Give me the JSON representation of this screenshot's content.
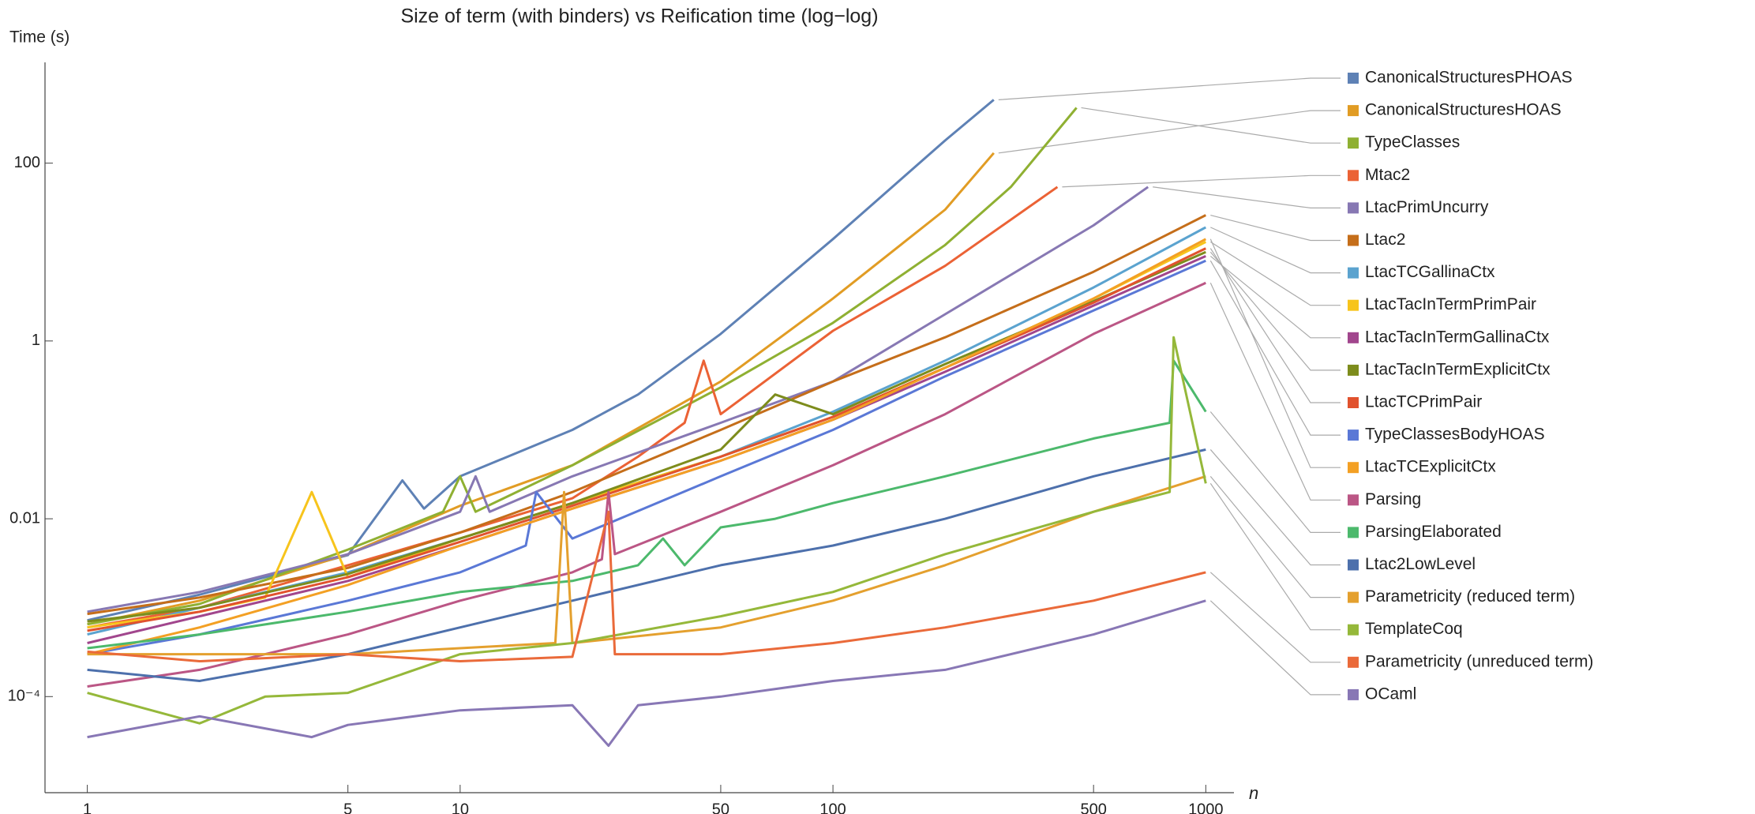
{
  "chart_data": {
    "type": "line",
    "title": "Size of term (with binders) vs Reification time (log−log)",
    "y_label": "Time (s)",
    "x_label": "n",
    "xscale": "log",
    "yscale": "log",
    "xlim": [
      0.77,
      1190
    ],
    "ylim": [
      8.3e-06,
      1360
    ],
    "xticks": [
      1,
      5,
      10,
      50,
      100,
      500,
      1000
    ],
    "yticks": [
      100,
      1,
      0.01,
      {
        "value": 0.0001,
        "label": "10⁻⁴"
      }
    ],
    "legend": "right",
    "series": [
      {
        "name": "CanonicalStructuresPHOAS",
        "color": "#5e81b5",
        "x": [
          1,
          2,
          3,
          5,
          7,
          8,
          10,
          20,
          30,
          50,
          100,
          200,
          270
        ],
        "values": [
          0.00072,
          0.0014,
          0.0022,
          0.0039,
          0.027,
          0.013,
          0.03,
          0.1,
          0.25,
          1.2,
          14,
          180,
          516
        ]
      },
      {
        "name": "CanonicalStructuresHOAS",
        "color": "#e19c24",
        "x": [
          1,
          2,
          5,
          10,
          20,
          50,
          100,
          200,
          270
        ],
        "values": [
          0.00065,
          0.0012,
          0.004,
          0.014,
          0.04,
          0.35,
          3,
          30,
          130
        ]
      },
      {
        "name": "TypeClasses",
        "color": "#8fb032",
        "x": [
          1,
          2,
          5,
          9,
          10,
          11,
          20,
          50,
          100,
          200,
          300,
          450
        ],
        "values": [
          0.00065,
          0.0011,
          0.0045,
          0.012,
          0.03,
          0.012,
          0.04,
          0.3,
          1.6,
          12,
          54,
          420
        ]
      },
      {
        "name": "Mtac2",
        "color": "#eb6235",
        "x": [
          1,
          2,
          5,
          10,
          20,
          30,
          40,
          45,
          50,
          100,
          200,
          400
        ],
        "values": [
          0.0006,
          0.001,
          0.003,
          0.007,
          0.017,
          0.05,
          0.12,
          0.6,
          0.15,
          1.3,
          7,
          54
        ]
      },
      {
        "name": "LtacPrimUncurry",
        "color": "#8778b3",
        "x": [
          1,
          2,
          5,
          10,
          11,
          12,
          20,
          50,
          100,
          200,
          500,
          700
        ],
        "values": [
          0.0009,
          0.0015,
          0.004,
          0.012,
          0.03,
          0.012,
          0.03,
          0.12,
          0.35,
          2,
          20,
          54
        ]
      },
      {
        "name": "Ltac2",
        "color": "#c56e1a",
        "x": [
          1,
          2,
          5,
          10,
          20,
          50,
          100,
          200,
          500,
          1000
        ],
        "values": [
          0.00085,
          0.0013,
          0.0028,
          0.007,
          0.02,
          0.1,
          0.35,
          1.1,
          6,
          26
        ]
      },
      {
        "name": "LtacTCGallinaCtx",
        "color": "#5ba3cf",
        "x": [
          1,
          2,
          5,
          10,
          20,
          50,
          100,
          200,
          500,
          1000
        ],
        "values": [
          0.0005,
          0.001,
          0.0025,
          0.006,
          0.015,
          0.05,
          0.16,
          0.6,
          4,
          19
        ]
      },
      {
        "name": "LtacTacInTermPrimPair",
        "color": "#f7c41c",
        "x": [
          1,
          2,
          3,
          4,
          5,
          10,
          20,
          50,
          100,
          200,
          500,
          1000
        ],
        "values": [
          0.0006,
          0.0009,
          0.0013,
          0.02,
          0.0022,
          0.006,
          0.015,
          0.05,
          0.14,
          0.5,
          3,
          13
        ]
      },
      {
        "name": "LtacTacInTermGallinaCtx",
        "color": "#a1468d",
        "x": [
          1,
          2,
          5,
          10,
          20,
          50,
          100,
          200,
          500,
          1000
        ],
        "values": [
          0.0004,
          0.0008,
          0.002,
          0.005,
          0.013,
          0.045,
          0.13,
          0.45,
          2.5,
          9
        ]
      },
      {
        "name": "LtacTacInTermExplicitCtx",
        "color": "#7d8c1c",
        "x": [
          1,
          2,
          5,
          10,
          20,
          50,
          70,
          100,
          200,
          500,
          1000
        ],
        "values": [
          0.0007,
          0.001,
          0.0024,
          0.006,
          0.015,
          0.06,
          0.25,
          0.15,
          0.55,
          2.8,
          10
        ]
      },
      {
        "name": "LtacTCPrimPair",
        "color": "#e1522e",
        "x": [
          1,
          2,
          5,
          10,
          20,
          50,
          100,
          200,
          500,
          1000
        ],
        "values": [
          0.00055,
          0.0009,
          0.0022,
          0.0055,
          0.014,
          0.05,
          0.14,
          0.5,
          2.7,
          11
        ]
      },
      {
        "name": "TypeClassesBodyHOAS",
        "color": "#5a78d6",
        "x": [
          1,
          2,
          5,
          10,
          15,
          16,
          20,
          50,
          100,
          200,
          500,
          1000
        ],
        "values": [
          0.0003,
          0.0005,
          0.0012,
          0.0025,
          0.005,
          0.02,
          0.006,
          0.03,
          0.1,
          0.4,
          2.2,
          8
        ]
      },
      {
        "name": "LtacTCExplicitCtx",
        "color": "#f3a024",
        "x": [
          1,
          2,
          5,
          10,
          20,
          50,
          100,
          200,
          500,
          1000
        ],
        "values": [
          0.0003,
          0.0006,
          0.0018,
          0.005,
          0.013,
          0.045,
          0.13,
          0.5,
          3,
          14
        ]
      },
      {
        "name": "Parsing",
        "color": "#bb5685",
        "x": [
          1,
          2,
          5,
          10,
          20,
          24,
          25,
          26,
          50,
          100,
          200,
          500,
          1000
        ],
        "values": [
          0.00013,
          0.0002,
          0.0005,
          0.0012,
          0.0025,
          0.0035,
          0.02,
          0.004,
          0.012,
          0.04,
          0.15,
          1.2,
          4.5
        ]
      },
      {
        "name": "ParsingElaborated",
        "color": "#4cb96c",
        "x": [
          1,
          2,
          5,
          10,
          20,
          30,
          35,
          40,
          50,
          70,
          100,
          200,
          500,
          800,
          820,
          1000
        ],
        "values": [
          0.00035,
          0.0005,
          0.0009,
          0.0015,
          0.002,
          0.003,
          0.006,
          0.003,
          0.008,
          0.01,
          0.015,
          0.03,
          0.08,
          0.12,
          0.6,
          0.16
        ]
      },
      {
        "name": "Ltac2LowLevel",
        "color": "#4d70ac",
        "x": [
          1,
          2,
          5,
          10,
          20,
          50,
          100,
          200,
          500,
          1000
        ],
        "values": [
          0.0002,
          0.00015,
          0.0003,
          0.0006,
          0.0012,
          0.003,
          0.005,
          0.01,
          0.03,
          0.06
        ]
      },
      {
        "name": "Parametricity (reduced term)",
        "color": "#e4a02e",
        "x": [
          1,
          2,
          5,
          10,
          18,
          19,
          20,
          50,
          100,
          200,
          500,
          1000
        ],
        "values": [
          0.0003,
          0.0003,
          0.0003,
          0.00035,
          0.0004,
          0.02,
          0.0004,
          0.0006,
          0.0012,
          0.003,
          0.012,
          0.03
        ]
      },
      {
        "name": "TemplateCoq",
        "color": "#95b83a",
        "x": [
          1,
          2,
          3,
          5,
          10,
          20,
          50,
          100,
          200,
          500,
          800,
          820,
          1000
        ],
        "values": [
          0.00011,
          5e-05,
          0.0001,
          0.00011,
          0.0003,
          0.0004,
          0.0008,
          0.0015,
          0.004,
          0.012,
          0.02,
          1.1,
          0.025
        ]
      },
      {
        "name": "Parametricity (unreduced term)",
        "color": "#ea6a3a",
        "x": [
          1,
          2,
          5,
          10,
          20,
          25,
          26,
          27,
          50,
          100,
          200,
          500,
          1000
        ],
        "values": [
          0.00032,
          0.00025,
          0.0003,
          0.00025,
          0.00028,
          0.012,
          0.0003,
          0.0003,
          0.0003,
          0.0004,
          0.0006,
          0.0012,
          0.0025
        ]
      },
      {
        "name": "OCaml",
        "color": "#8877b5",
        "x": [
          1,
          2,
          4,
          5,
          10,
          20,
          25,
          30,
          50,
          100,
          200,
          500,
          1000
        ],
        "values": [
          3.5e-05,
          6e-05,
          3.5e-05,
          4.8e-05,
          7e-05,
          8e-05,
          2.8e-05,
          8e-05,
          0.0001,
          0.00015,
          0.0002,
          0.0005,
          0.0012
        ]
      }
    ]
  }
}
